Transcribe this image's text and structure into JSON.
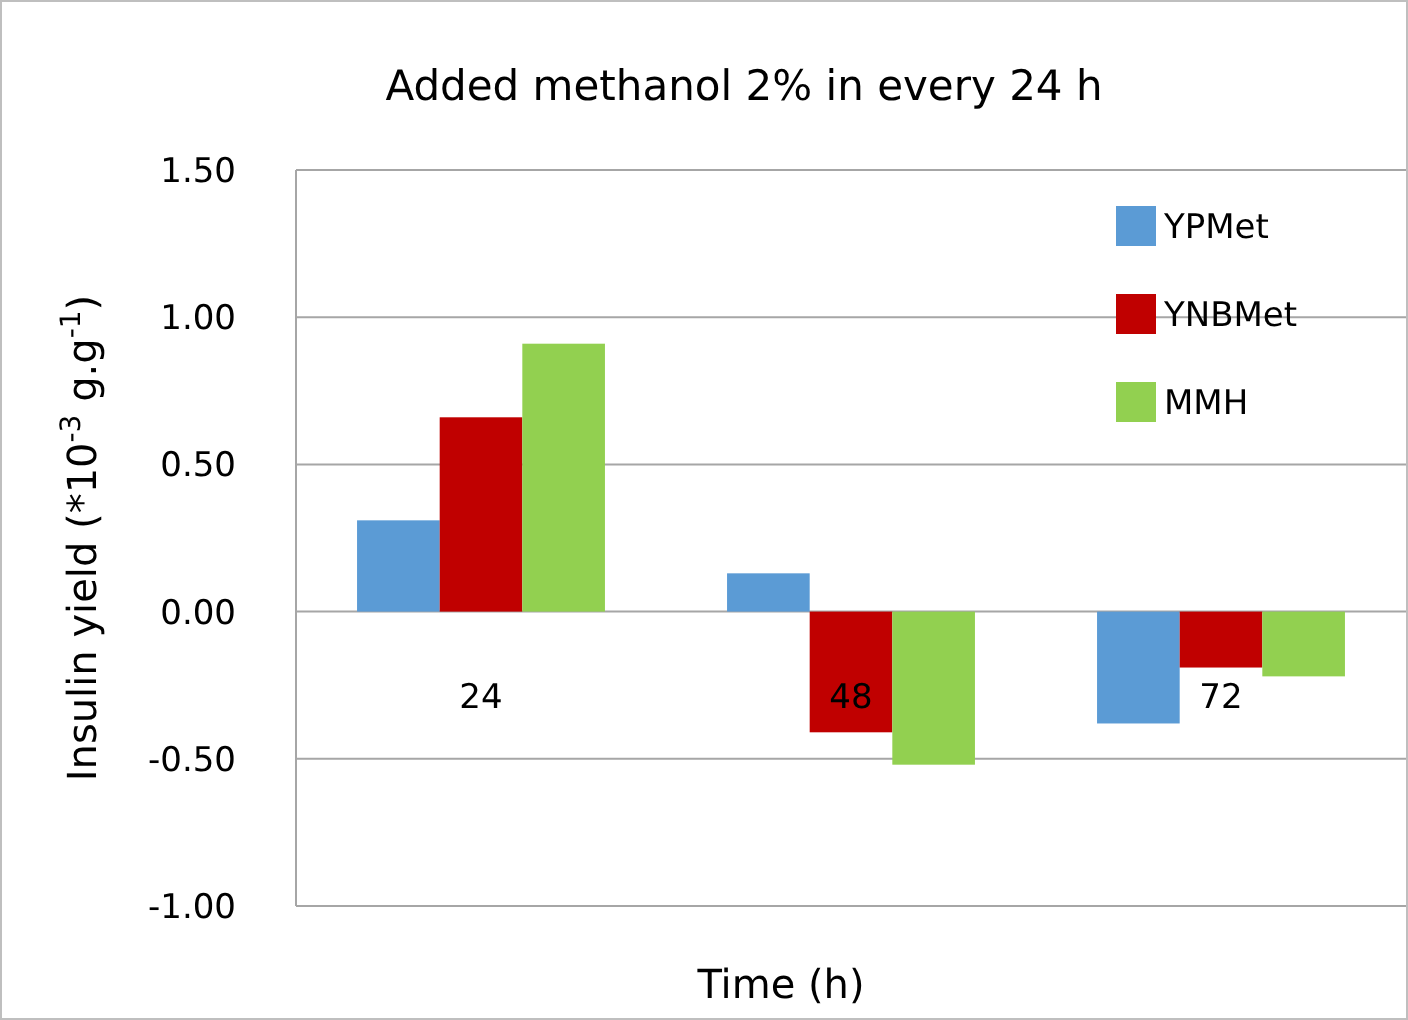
{
  "chart_data": {
    "type": "bar",
    "title": "Added methanol 2% in every 24 h",
    "xlabel": "Time (h)",
    "ylabel": "Insulin yield (*10$^{-3}$ g.g$^{-1}$)",
    "categories": [
      "24",
      "48",
      "72"
    ],
    "series": [
      {
        "name": "YPMet",
        "color": "#5b9bd5",
        "values": [
          0.31,
          0.13,
          -0.38
        ]
      },
      {
        "name": "YNBMet",
        "color": "#c00000",
        "values": [
          0.66,
          -0.41,
          -0.19
        ]
      },
      {
        "name": "MMH",
        "color": "#92d050",
        "values": [
          0.91,
          -0.52,
          -0.22
        ]
      }
    ],
    "ylim": [
      -1,
      1.5
    ],
    "yticks": [
      {
        "value": -1,
        "label": "-1.00"
      },
      {
        "value": -0.5,
        "label": "-0.50"
      },
      {
        "value": 0,
        "label": "0.00"
      },
      {
        "value": 0.5,
        "label": "0.50"
      },
      {
        "value": 1,
        "label": "1.00"
      },
      {
        "value": 1.5,
        "label": "1.50"
      }
    ],
    "grid": "y",
    "legend": "top right"
  }
}
